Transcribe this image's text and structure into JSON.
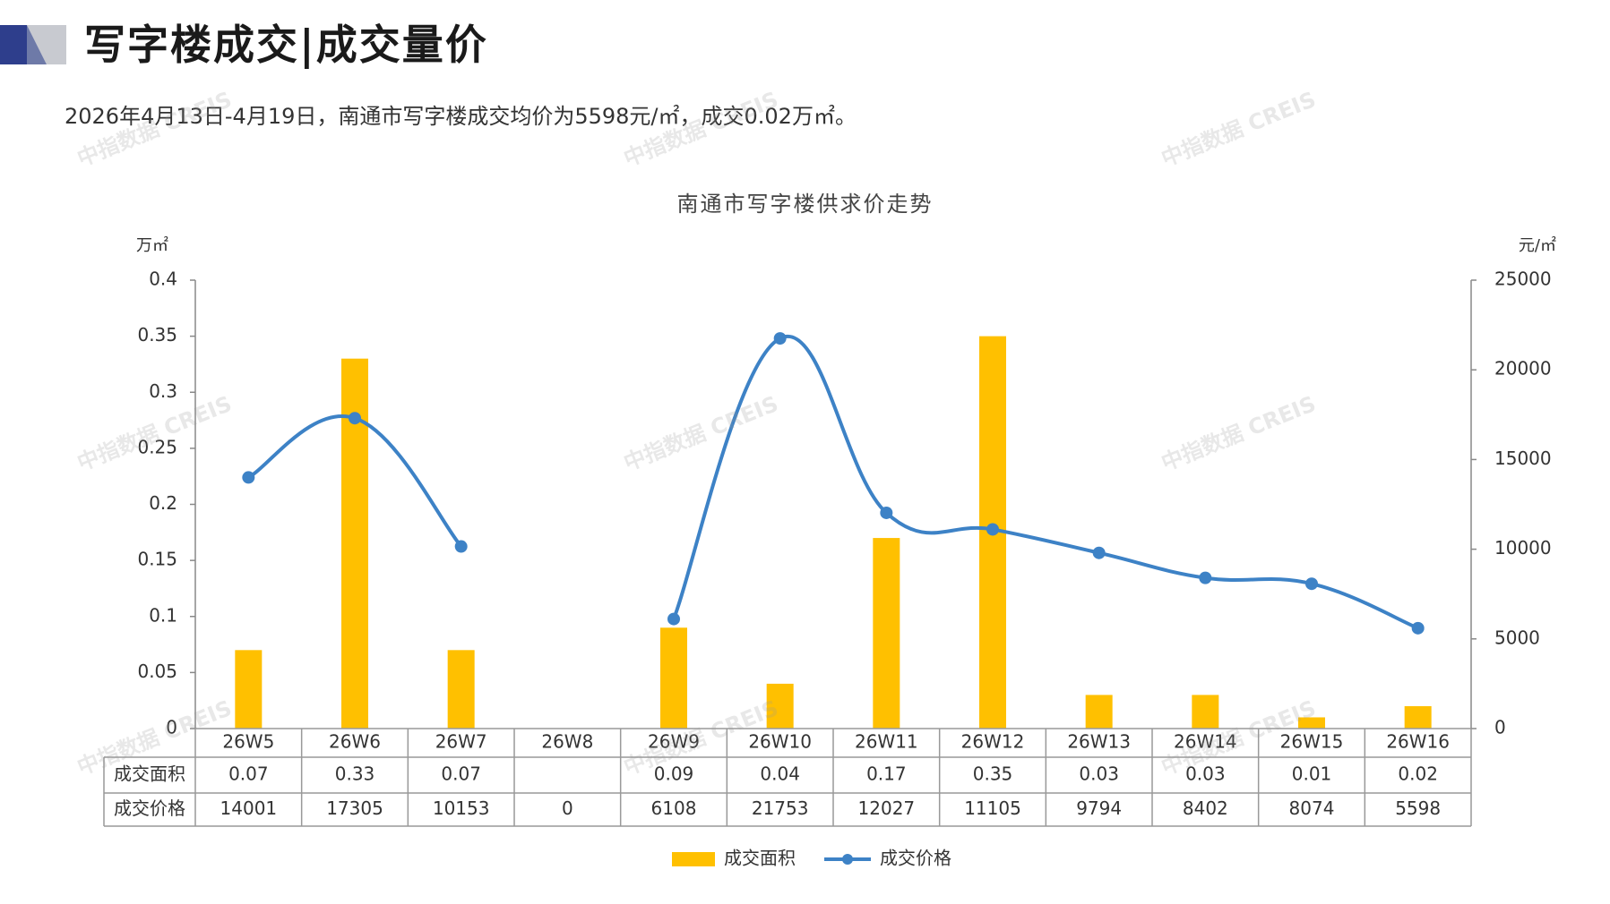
{
  "header": {
    "title": "写字楼成交|成交量价",
    "summary": "2026年4月13日-4月19日，南通市写字楼成交均价为5598元/㎡，成交0.02万㎡。"
  },
  "watermark": "中指数据 CREIS",
  "colors": {
    "bar": "#FFC000",
    "line": "#3D82C6",
    "axis": "#888888",
    "table_border": "#999999",
    "logo_dark": "#2E3E8C",
    "logo_light": "#C8CAD0"
  },
  "chart_data": {
    "type": "bar+line",
    "title": "南通市写字楼供求价走势",
    "categories": [
      "26W5",
      "26W6",
      "26W7",
      "26W8",
      "26W9",
      "26W10",
      "26W11",
      "26W12",
      "26W13",
      "26W14",
      "26W15",
      "26W16"
    ],
    "series": [
      {
        "name": "成交面积",
        "type": "bar",
        "axis": "left",
        "values": [
          0.07,
          0.33,
          0.07,
          null,
          0.09,
          0.04,
          0.17,
          0.35,
          0.03,
          0.03,
          0.01,
          0.02
        ]
      },
      {
        "name": "成交价格",
        "type": "line",
        "axis": "right",
        "smooth": true,
        "values": [
          14001,
          17305,
          10153,
          0,
          6108,
          21753,
          12027,
          11105,
          9794,
          8402,
          8074,
          5598
        ]
      }
    ],
    "left_axis": {
      "unit": "万㎡",
      "ylim": [
        0,
        0.4
      ],
      "ticks": [
        "0",
        "0.05",
        "0.1",
        "0.15",
        "0.2",
        "0.25",
        "0.3",
        "0.35",
        "0.4"
      ]
    },
    "right_axis": {
      "unit": "元/㎡",
      "ylim": [
        0,
        25000
      ],
      "ticks": [
        "0",
        "5000",
        "10000",
        "15000",
        "20000",
        "25000"
      ]
    },
    "table": {
      "row_labels": [
        "成交面积",
        "成交价格"
      ],
      "area_text": [
        "0.07",
        "0.33",
        "0.07",
        "",
        "0.09",
        "0.04",
        "0.17",
        "0.35",
        "0.03",
        "0.03",
        "0.01",
        "0.02"
      ],
      "price_text": [
        "14001",
        "17305",
        "10153",
        "0",
        "6108",
        "21753",
        "12027",
        "11105",
        "9794",
        "8402",
        "8074",
        "5598"
      ]
    },
    "legend": {
      "position": "bottom-center",
      "items": [
        "成交面积",
        "成交价格"
      ]
    }
  }
}
